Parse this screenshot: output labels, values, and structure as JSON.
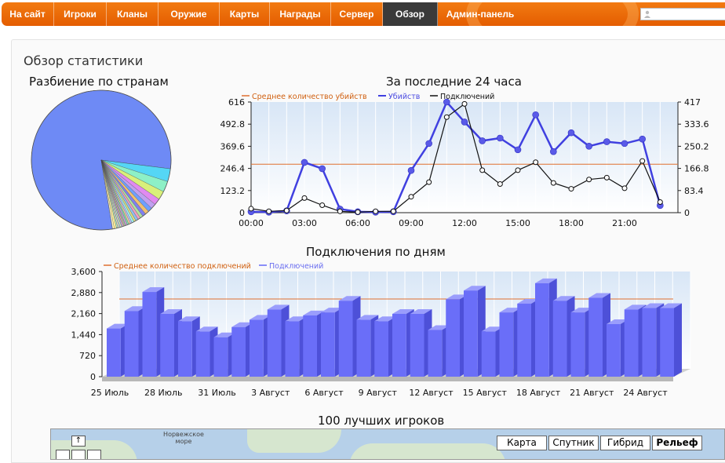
{
  "nav": {
    "items": [
      "На сайт",
      "Игроки",
      "Кланы",
      "Оружие",
      "Карты",
      "Награды",
      "Сервер",
      "Обзор",
      "Админ-панель"
    ],
    "active_index": 7
  },
  "page": {
    "title": "Обзор статистики"
  },
  "charts": {
    "pie_title": "Разбиение по странам",
    "day_title": "За последние 24 часа",
    "days_title": "Подключения по дням",
    "top_title": "100 лучших игроков"
  },
  "chart_data": [
    {
      "type": "pie",
      "title": "Разбиение по странам",
      "values": [
        80.0,
        3.0,
        2.5,
        2.0,
        1.5,
        1.2,
        1.0,
        0.9,
        0.8,
        0.7,
        0.6,
        0.6,
        0.5,
        0.5,
        0.4,
        0.4,
        0.4,
        0.4,
        0.4,
        0.3,
        0.3,
        0.3,
        0.3,
        0.3,
        0.3,
        0.5,
        0.4
      ],
      "colors": [
        "#6e8af5",
        "#55d6f5",
        "#8df0c6",
        "#d9f07a",
        "#e08af0",
        "#c0a0f0",
        "#6fa0ff",
        "#f0c070",
        "#8080f0",
        "#b0e0a0",
        "#f0a0c0",
        "#90c0f0",
        "#e0e080",
        "#a0f0f0",
        "#c0c0ff",
        "#f0d0a0",
        "#80e0b0",
        "#d0a0e0",
        "#a0c0a0",
        "#f0b0b0",
        "#b0b0f0",
        "#e0f0b0",
        "#c0e0f0",
        "#f0e0c0",
        "#b0f0d0",
        "#ffee99",
        "#fff4c2"
      ]
    },
    {
      "type": "line",
      "title": "За последние 24 часа",
      "legend": [
        "Среднее количество убийств",
        "Убийств",
        "Подключений"
      ],
      "x_labels": [
        "00:00",
        "03:00",
        "06:00",
        "09:00",
        "12:00",
        "15:00",
        "18:00",
        "21:00"
      ],
      "y_left_ticks": [
        "0",
        "123.2",
        "246.4",
        "369.6",
        "492.8",
        "616"
      ],
      "y_right_ticks": [
        "0",
        "83.4",
        "166.8",
        "250.2",
        "333.6",
        "417"
      ],
      "ylim_left": [
        0,
        616
      ],
      "ylim_right": [
        0,
        417
      ],
      "x_hours": [
        0,
        1,
        2,
        3,
        4,
        5,
        6,
        7,
        8,
        9,
        10,
        11,
        12,
        13,
        14,
        15,
        16,
        17,
        18,
        19,
        20,
        21,
        22,
        23
      ],
      "avg_kills": 270,
      "series": [
        {
          "name": "Убийств",
          "axis": "left",
          "color": "#4040e0",
          "values": [
            5,
            3,
            10,
            280,
            245,
            20,
            5,
            3,
            5,
            235,
            385,
            616,
            505,
            400,
            415,
            350,
            545,
            340,
            445,
            370,
            395,
            385,
            410,
            40
          ]
        },
        {
          "name": "Подключений",
          "axis": "right",
          "color": "#111111",
          "values": [
            15,
            5,
            8,
            55,
            28,
            5,
            2,
            5,
            5,
            60,
            115,
            360,
            410,
            160,
            108,
            160,
            190,
            112,
            90,
            125,
            132,
            92,
            195,
            40
          ]
        }
      ]
    },
    {
      "type": "bar",
      "title": "Подключения по дням",
      "legend": [
        "Среднее количество подключений",
        "Подключений"
      ],
      "x_labels": [
        "25 Июль",
        "28 Июль",
        "31 Июль",
        "3 Август",
        "6 Август",
        "9 Август",
        "12 Август",
        "15 Август",
        "18 Август",
        "21 Август",
        "24 Август"
      ],
      "y_ticks": [
        "0",
        "720",
        "1,440",
        "2,160",
        "2,880",
        "3,600"
      ],
      "ylim": [
        0,
        3600
      ],
      "average": 2500,
      "values": [
        1650,
        2250,
        2900,
        2150,
        1900,
        1550,
        1350,
        1700,
        1950,
        2300,
        1900,
        2100,
        2200,
        2600,
        1950,
        1900,
        2150,
        2150,
        1600,
        2650,
        2950,
        1550,
        2200,
        2500,
        3200,
        2600,
        2200,
        2700,
        1800,
        2300,
        2350,
        2350
      ],
      "color": "#6a6ef8"
    }
  ],
  "map": {
    "label_norway_sea": "Норвежское море",
    "types": [
      "Карта",
      "Спутник",
      "Гибрид",
      "Рельеф"
    ],
    "active_type": "Рельеф",
    "pan_up": "↑"
  },
  "colors": {
    "nav_orange": "#e86400",
    "nav_active": "#3a3a3a",
    "avg_line": "#e07030"
  }
}
